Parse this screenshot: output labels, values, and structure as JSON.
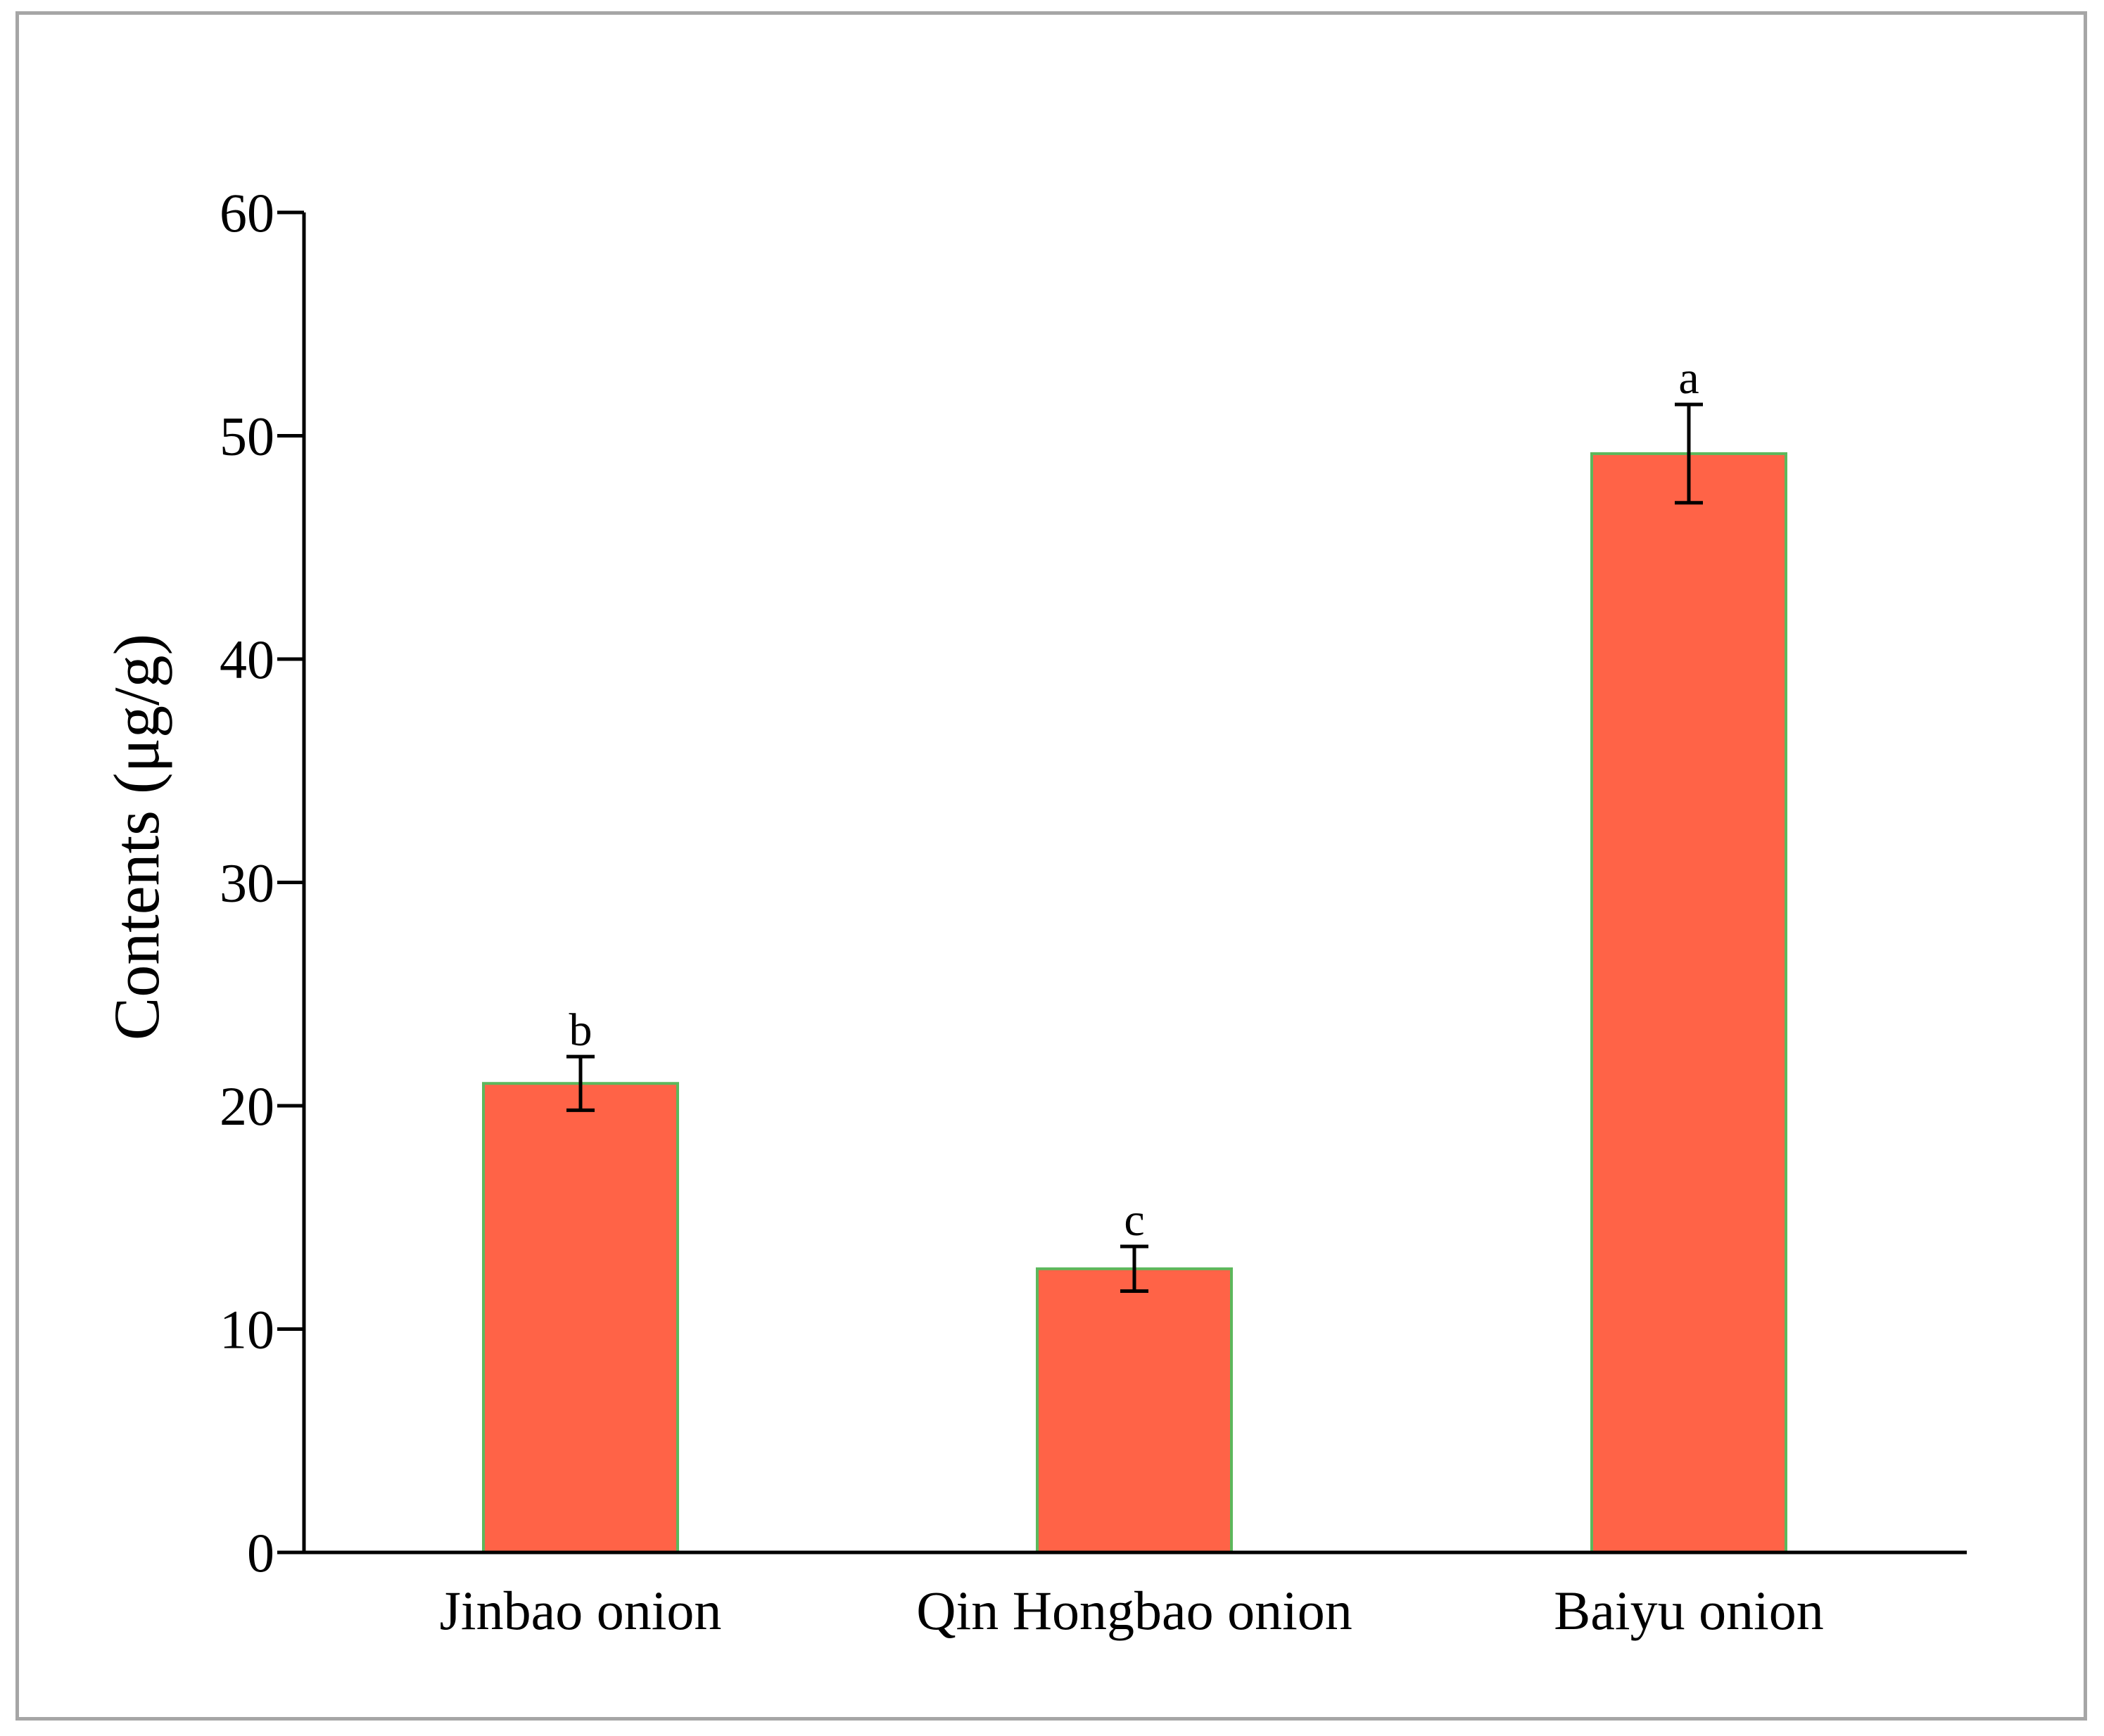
{
  "chart_data": {
    "type": "bar",
    "categories": [
      "Jinbao onion",
      "Qin Hongbao onion",
      "Baiyu onion"
    ],
    "values": [
      21.0,
      12.7,
      49.2
    ],
    "error": [
      1.2,
      1.0,
      2.2
    ],
    "significance": [
      "b",
      "c",
      "a"
    ],
    "title": "",
    "xlabel": "",
    "ylabel": "Contents (μg/g)",
    "ylim": [
      0,
      60
    ],
    "yticks": [
      0,
      10,
      20,
      30,
      40,
      50,
      60
    ],
    "grid": false,
    "legend": "none",
    "colors": {
      "bar_fill": "#ff6347",
      "bar_edge": "#5cb85c",
      "axis": "#000000",
      "error_bar": "#000000",
      "frame": "#a6a6a6"
    }
  }
}
